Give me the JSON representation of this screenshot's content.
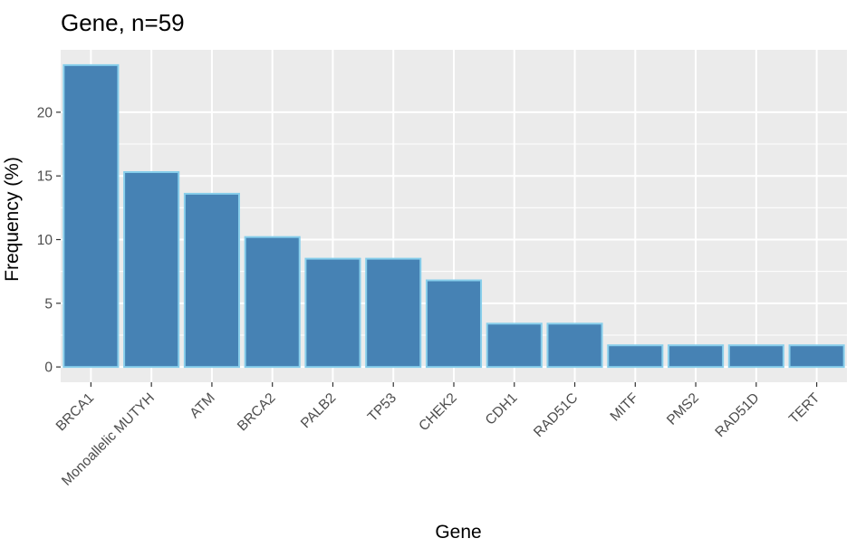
{
  "chart_data": {
    "type": "bar",
    "title": "Gene, n=59",
    "xlabel": "Gene",
    "ylabel": "Frequency (%)",
    "categories": [
      "BRCA1",
      "Monoallelic MUTYH",
      "ATM",
      "BRCA2",
      "PALB2",
      "TP53",
      "CHEK2",
      "CDH1",
      "RAD51C",
      "MITF",
      "PMS2",
      "RAD51D",
      "TERT"
    ],
    "values": [
      23.7,
      15.3,
      13.6,
      10.2,
      8.5,
      8.5,
      6.8,
      3.4,
      3.4,
      1.7,
      1.7,
      1.7,
      1.7
    ],
    "yticks": [
      0,
      5,
      10,
      15,
      20
    ],
    "ylim": [
      -1.2,
      24.9
    ],
    "grid": true,
    "colors": {
      "bar_fill": "#4682b4",
      "bar_outline": "#87ceeb",
      "panel_background": "#ebebeb",
      "grid_line": "#ffffff"
    }
  }
}
